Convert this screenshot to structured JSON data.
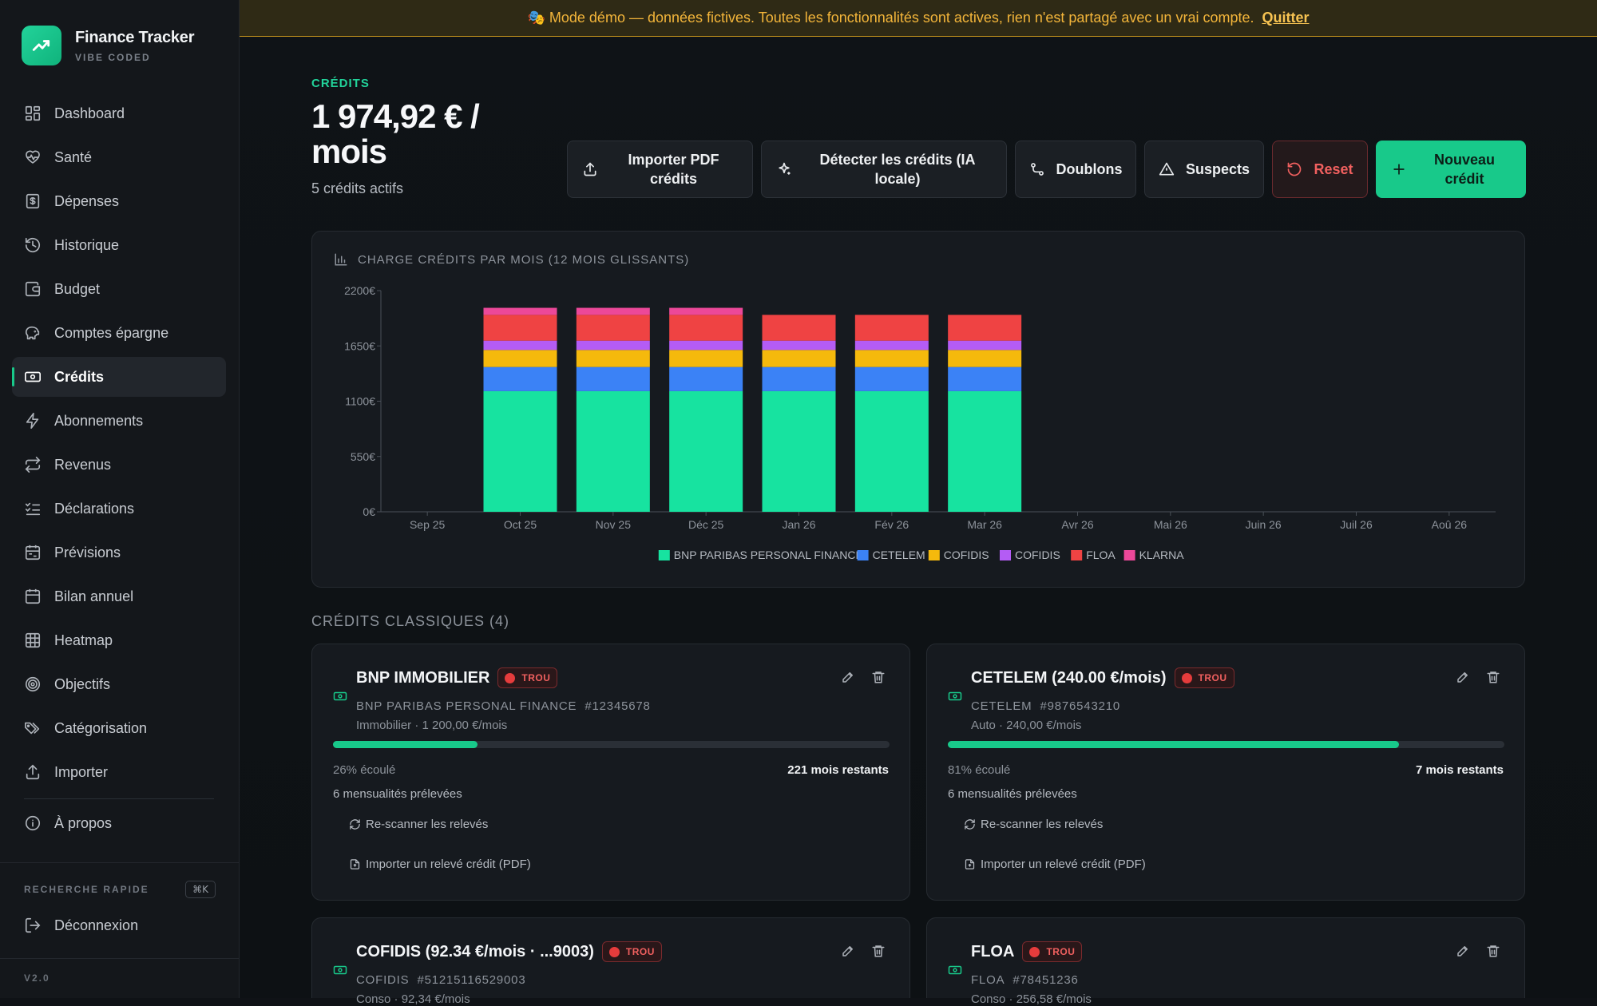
{
  "brand": {
    "title": "Finance Tracker",
    "subtitle": "VIBE CODED"
  },
  "nav": [
    {
      "label": "Dashboard",
      "icon": "dashboard-icon"
    },
    {
      "label": "Santé",
      "icon": "heart-pulse-icon"
    },
    {
      "label": "Dépenses",
      "icon": "receipt-icon"
    },
    {
      "label": "Historique",
      "icon": "history-icon"
    },
    {
      "label": "Budget",
      "icon": "wallet-icon"
    },
    {
      "label": "Comptes épargne",
      "icon": "piggy-bank-icon"
    },
    {
      "label": "Crédits",
      "icon": "banknote-icon",
      "active": true
    },
    {
      "label": "Abonnements",
      "icon": "zap-icon"
    },
    {
      "label": "Revenus",
      "icon": "repeat-icon"
    },
    {
      "label": "Déclarations",
      "icon": "list-checks-icon"
    },
    {
      "label": "Prévisions",
      "icon": "calendar-range-icon"
    },
    {
      "label": "Bilan annuel",
      "icon": "calendar-icon"
    },
    {
      "label": "Heatmap",
      "icon": "grid-icon"
    },
    {
      "label": "Objectifs",
      "icon": "target-icon"
    },
    {
      "label": "Catégorisation",
      "icon": "tags-icon"
    },
    {
      "label": "Importer",
      "icon": "upload-icon"
    }
  ],
  "about": {
    "label": "À propos"
  },
  "quick_search": {
    "label": "RECHERCHE RAPIDE",
    "shortcut": "⌘K"
  },
  "logout": {
    "label": "Déconnexion"
  },
  "version": "V2.0",
  "banner": {
    "text": "🎭 Mode démo — données fictives. Toutes les fonctionnalités sont actives, rien n'est partagé avec un vrai compte.",
    "link": "Quitter"
  },
  "header": {
    "eyebrow": "CRÉDITS",
    "total": "1 974,92 € / mois",
    "subtitle": "5 crédits actifs"
  },
  "actions": {
    "import_pdf": "Importer PDF crédits",
    "detect": "Détecter les crédits (IA locale)",
    "duplicates": "Doublons",
    "suspects": "Suspects",
    "reset": "Reset",
    "new_credit": "Nouveau crédit"
  },
  "chart_title": "CHARGE CRÉDITS PAR MOIS (12 MOIS GLISSANTS)",
  "chart_data": {
    "type": "bar",
    "stacked": true,
    "categories": [
      "Sep 25",
      "Oct 25",
      "Nov 25",
      "Déc 25",
      "Jan 26",
      "Fév 26",
      "Mar 26",
      "Avr 26",
      "Mai 26",
      "Juin 26",
      "Juil 26",
      "Aoû 26"
    ],
    "y_ticks": [
      "0€",
      "550€",
      "1100€",
      "1650€",
      "2200€"
    ],
    "ylim": [
      0,
      2200
    ],
    "series": [
      {
        "name": "BNP PARIBAS PERSONAL FINANCE",
        "color": "#17e3a0",
        "values": [
          0,
          1200,
          1200,
          1200,
          1200,
          1200,
          1200,
          0,
          0,
          0,
          0,
          0
        ]
      },
      {
        "name": "CETELEM",
        "color": "#3b82f6",
        "values": [
          0,
          240,
          240,
          240,
          240,
          240,
          240,
          0,
          0,
          0,
          0,
          0
        ]
      },
      {
        "name": "COFIDIS",
        "color": "#f5b90c",
        "values": [
          0,
          170,
          170,
          170,
          170,
          170,
          170,
          0,
          0,
          0,
          0,
          0
        ]
      },
      {
        "name": "COFIDIS",
        "color": "#b45cf5",
        "values": [
          0,
          92.34,
          92.34,
          92.34,
          92.34,
          92.34,
          92.34,
          0,
          0,
          0,
          0,
          0
        ]
      },
      {
        "name": "FLOA",
        "color": "#ef4343",
        "values": [
          0,
          256.58,
          256.58,
          256.58,
          256.58,
          256.58,
          256.58,
          0,
          0,
          0,
          0,
          0
        ]
      },
      {
        "name": "KLARNA",
        "color": "#ec4899",
        "values": [
          0,
          70,
          70,
          70,
          0,
          0,
          0,
          0,
          0,
          0,
          0,
          0
        ]
      }
    ],
    "legend": "bottom",
    "grid": false
  },
  "section_title": "CRÉDITS CLASSIQUES (4)",
  "credits": [
    {
      "name": "BNP IMMOBILIER",
      "badge": "TROU",
      "lender": "BNP PARIBAS PERSONAL FINANCE",
      "ref": "#12345678",
      "type": "Immobilier · 1 200,00 €/mois",
      "progress": 0.26,
      "elapsed": "26% écoulé",
      "remaining": "221 mois restants",
      "debits": "6 mensualités prélevées",
      "rescan": "Re-scanner les relevés",
      "import": "Importer un relevé crédit (PDF)"
    },
    {
      "name": "CETELEM (240.00 €/mois)",
      "badge": "TROU",
      "lender": "CETELEM",
      "ref": "#9876543210",
      "type": "Auto · 240,00 €/mois",
      "progress": 0.81,
      "elapsed": "81% écoulé",
      "remaining": "7 mois restants",
      "debits": "6 mensualités prélevées",
      "rescan": "Re-scanner les relevés",
      "import": "Importer un relevé crédit (PDF)"
    },
    {
      "name": "COFIDIS (92.34 €/mois · ...9003)",
      "badge": "TROU",
      "lender": "COFIDIS",
      "ref": "#51215116529003",
      "type": "Conso · 92,34 €/mois"
    },
    {
      "name": "FLOA",
      "badge": "TROU",
      "lender": "FLOA",
      "ref": "#78451236",
      "type": "Conso · 256,58 €/mois"
    }
  ],
  "colors": {
    "accent": "#18c98a",
    "danger": "#f0605f",
    "warning": "#f3b53a"
  }
}
